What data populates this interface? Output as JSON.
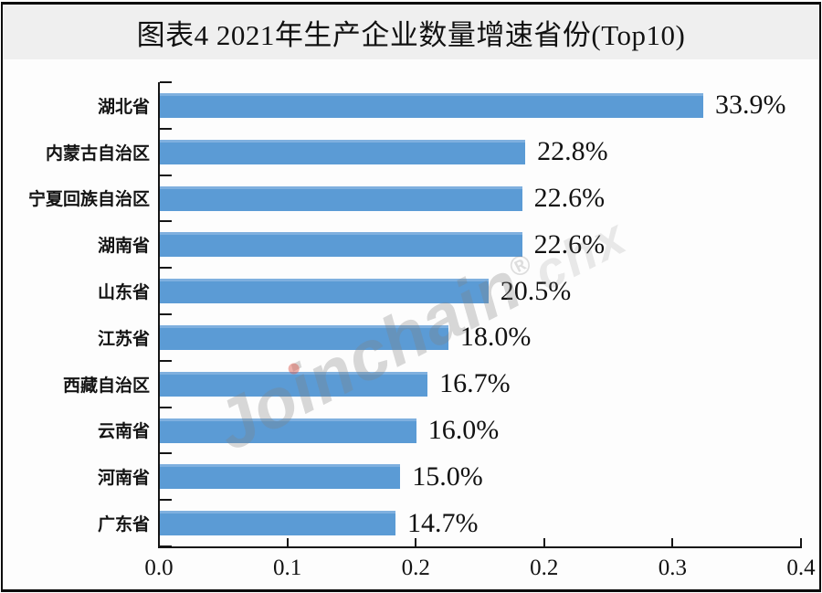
{
  "header": {
    "title": "图表4 2021年生产企业数量增速省份(Top10)"
  },
  "watermark": {
    "text": "Joinchain",
    "reg_mark": "®",
    "suffix": "chx"
  },
  "colors": {
    "bar": "#5B9BD5",
    "title_band_bg": "#efefef",
    "chart_bg": "#fdfdfd",
    "frame_border": "#0d0d0d",
    "watermark_gray": "#d8d8d8",
    "watermark_dot_red": "#d94f43"
  },
  "chart_data": {
    "type": "bar",
    "orientation": "horizontal",
    "title": "图表4 2021年生产企业数量增速省份(Top10)",
    "categories": [
      "湖北省",
      "内蒙古自治区",
      "宁夏回族自治区",
      "湖南省",
      "山东省",
      "江苏省",
      "西藏自治区",
      "云南省",
      "河南省",
      "广东省"
    ],
    "values": [
      0.339,
      0.228,
      0.226,
      0.226,
      0.205,
      0.18,
      0.167,
      0.16,
      0.15,
      0.147
    ],
    "data_labels": [
      "33.9%",
      "22.8%",
      "22.6%",
      "22.6%",
      "20.5%",
      "18.0%",
      "16.7%",
      "16.0%",
      "15.0%",
      "14.7%"
    ],
    "xlabel": "",
    "ylabel": "",
    "xlim": [
      0.0,
      0.4
    ],
    "xticklabels": [
      "0.0",
      "0.1",
      "0.2",
      "0.2",
      "0.3",
      "0.4"
    ],
    "grid": false,
    "legend": null,
    "bar_color": "#5B9BD5"
  }
}
